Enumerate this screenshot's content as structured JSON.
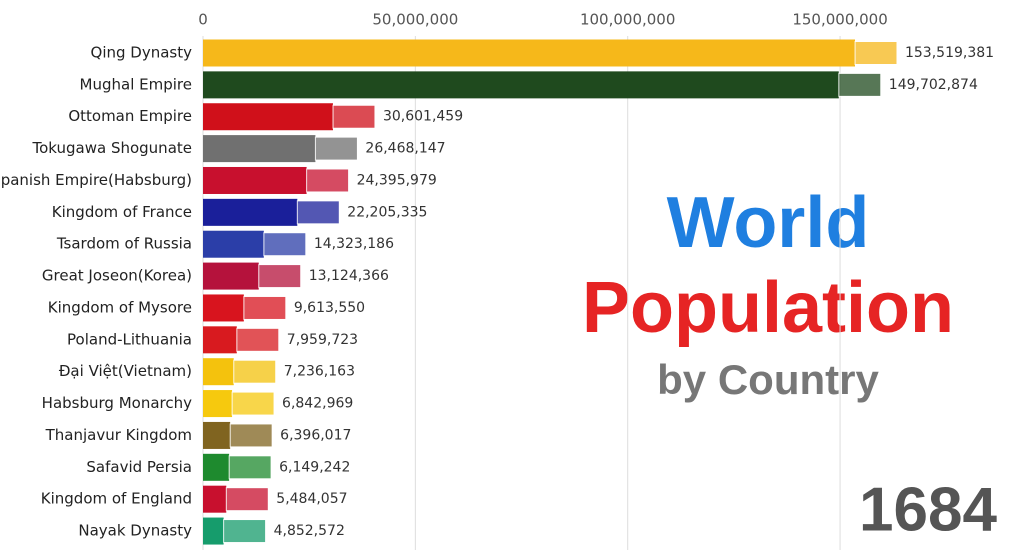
{
  "chart_data": {
    "type": "bar",
    "orientation": "horizontal",
    "title": "World",
    "subtitle": "Population",
    "subtitle2": "by Country",
    "annotation": "1684",
    "categories": [
      "Qing Dynasty",
      "Mughal Empire",
      "Ottoman Empire",
      "Tokugawa Shogunate",
      "Spanish Empire(Habsburg)",
      "Kingdom of France",
      "Tsardom of Russia",
      "Great Joseon(Korea)",
      "Kingdom of Mysore",
      "Poland-Lithuania",
      "Đại Việt(Vietnam)",
      "Habsburg Monarchy",
      "Thanjavur Kingdom",
      "Safavid Persia",
      "Kingdom of England",
      "Nayak Dynasty"
    ],
    "values": [
      153519381,
      149702874,
      30601459,
      26468147,
      24395979,
      22205335,
      14323186,
      13124366,
      9613550,
      7959723,
      7236163,
      6842969,
      6396017,
      6149242,
      5484057,
      4852572
    ],
    "value_labels": [
      "153,519,381",
      "149,702,874",
      "30,601,459",
      "26,468,147",
      "24,395,979",
      "22,205,335",
      "14,323,186",
      "13,124,366",
      "9,613,550",
      "7,959,723",
      "7,236,163",
      "6,842,969",
      "6,396,017",
      "6,149,242",
      "5,484,057",
      "4,852,572"
    ],
    "colors": [
      "#f6b81a",
      "#1f4a1e",
      "#d0101a",
      "#707070",
      "#c8102e",
      "#1a1f9a",
      "#2b3ea8",
      "#b5123c",
      "#d8141e",
      "#d81a1f",
      "#f4c20d",
      "#f6c90e",
      "#806420",
      "#1e8a2e",
      "#c8102e",
      "#169c6c"
    ],
    "xlim": [
      0,
      165000000
    ],
    "xticks": [
      0,
      {
        "value": 50000000,
        "label": "50,000,000"
      },
      {
        "value": 100000000,
        "label": "100,000,000"
      },
      {
        "value": 150000000,
        "label": "150,000,000"
      }
    ],
    "grid": true
  }
}
